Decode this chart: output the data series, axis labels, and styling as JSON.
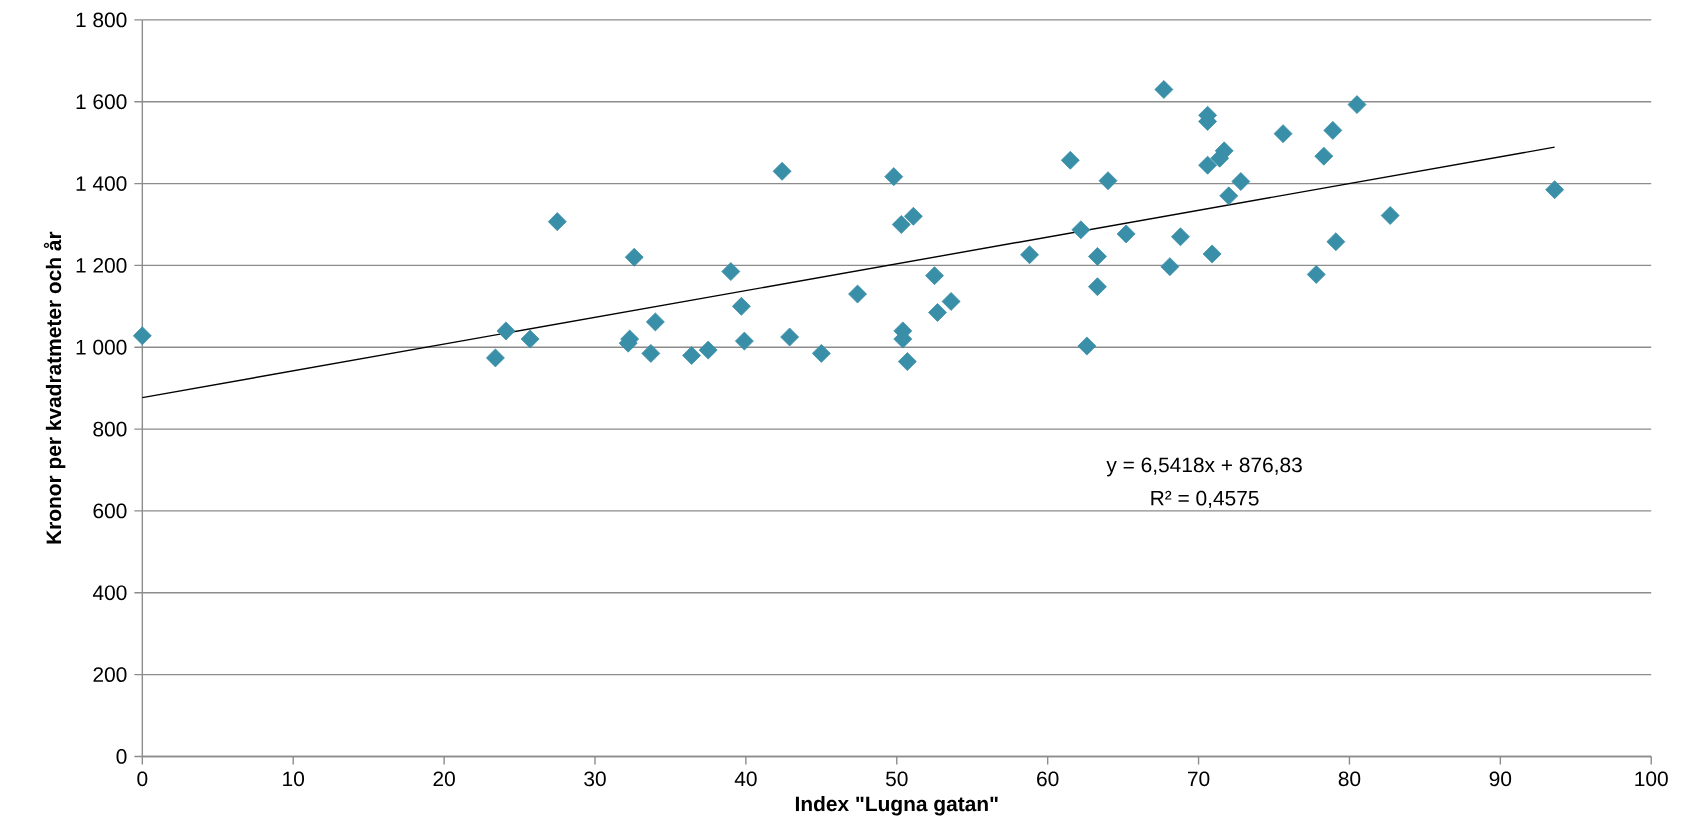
{
  "chart_data": {
    "type": "scatter",
    "xlabel": "Index \"Lugna gatan\"",
    "ylabel": "Kronor per kvadratmeter och år",
    "xlim": [
      0,
      100
    ],
    "xticks": [
      0,
      10,
      20,
      30,
      40,
      50,
      60,
      70,
      80,
      90,
      100
    ],
    "ylim": [
      0,
      1800
    ],
    "yticks": [
      0,
      200,
      400,
      600,
      800,
      {
        "value": 1000,
        "label": "1 000"
      },
      {
        "value": 1200,
        "label": "1 200"
      },
      {
        "value": 1400,
        "label": "1 400"
      },
      {
        "value": 1600,
        "label": "1 600"
      },
      {
        "value": 1800,
        "label": "1 800"
      }
    ],
    "grid": "y",
    "legend": false,
    "marker": "diamond",
    "annotations": [
      "y = 6,5418x + 876,83",
      "R² = 0,4575"
    ],
    "series": [
      {
        "color": "#3a8fa8",
        "x": [
          0,
          23.4,
          24.1,
          25.7,
          27.5,
          32.2,
          32.3,
          32.6,
          33.7,
          34,
          36.4,
          37.5,
          39,
          39.7,
          39.9,
          42.4,
          42.9,
          45,
          47.4,
          49.8,
          50.3,
          50.4,
          50.4,
          50.7,
          51.1,
          52.5,
          52.7,
          53.6,
          58.8,
          61.5,
          62.2,
          62.6,
          63.3,
          63.3,
          64,
          65.2,
          67.7,
          68.1,
          68.8,
          70.6,
          70.6,
          70.6,
          70.9,
          71.4,
          71.7,
          72,
          72.8,
          75.6,
          77.8,
          78.3,
          78.9,
          79.1,
          80.5,
          82.7,
          93.6
        ],
        "values": [
          1028,
          974,
          1040,
          1020,
          1307,
          1010,
          1020,
          1220,
          985,
          1062,
          980,
          993,
          1185,
          1100,
          1015,
          1430,
          1025,
          985,
          1130,
          1417,
          1300,
          1040,
          1020,
          965,
          1320,
          1175,
          1085,
          1112,
          1226,
          1457,
          1287,
          1003,
          1222,
          1148,
          1407,
          1277,
          1630,
          1197,
          1270,
          1567,
          1552,
          1445,
          1228,
          1462,
          1480,
          1370,
          1405,
          1522,
          1178,
          1467,
          1530,
          1258,
          1593,
          1322,
          1385
        ]
      },
      {
        "type": "line",
        "marker": "none",
        "color": "#000000",
        "x": [
          0,
          93.6
        ],
        "values": [
          877,
          1489
        ]
      }
    ]
  }
}
